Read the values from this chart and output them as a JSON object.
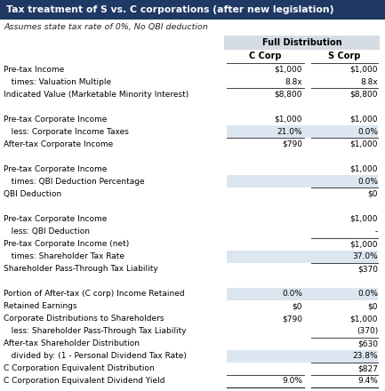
{
  "title": "Tax treatment of S vs. C corporations (after new legislation)",
  "subtitle": "Assumes state tax rate of 0%, No QBI deduction",
  "header_group": "Full Distribution",
  "col1_header": "C Corp",
  "col2_header": "S Corp",
  "rows": [
    {
      "label": "Pre-tax Income",
      "c": "$1,000",
      "s": "$1,000",
      "shade": false,
      "top_border": false,
      "bottom_border": false,
      "c_top": false,
      "s_top": false
    },
    {
      "label": "   times: Valuation Multiple",
      "c": "8.8x",
      "s": "8.8x",
      "shade": false,
      "top_border": false,
      "bottom_border": false,
      "c_top": false,
      "s_top": false
    },
    {
      "label": "Indicated Value (Marketable Minority Interest)",
      "c": "$8,800",
      "s": "$8,800",
      "shade": false,
      "top_border": false,
      "bottom_border": false,
      "c_top": true,
      "s_top": true
    },
    {
      "label": "",
      "c": "",
      "s": "",
      "shade": false,
      "top_border": false,
      "bottom_border": false,
      "c_top": false,
      "s_top": false
    },
    {
      "label": "Pre-tax Corporate Income",
      "c": "$1,000",
      "s": "$1,000",
      "shade": false,
      "top_border": false,
      "bottom_border": false,
      "c_top": false,
      "s_top": false
    },
    {
      "label": "   less: Corporate Income Taxes",
      "c": "21.0%",
      "s": "0.0%",
      "shade": true,
      "top_border": false,
      "bottom_border": false,
      "c_top": false,
      "s_top": false
    },
    {
      "label": "After-tax Corporate Income",
      "c": "$790",
      "s": "$1,000",
      "shade": false,
      "top_border": false,
      "bottom_border": false,
      "c_top": true,
      "s_top": true
    },
    {
      "label": "",
      "c": "",
      "s": "",
      "shade": false,
      "top_border": false,
      "bottom_border": false,
      "c_top": false,
      "s_top": false
    },
    {
      "label": "Pre-tax Corporate Income",
      "c": "",
      "s": "$1,000",
      "shade": false,
      "top_border": false,
      "bottom_border": false,
      "c_top": false,
      "s_top": false
    },
    {
      "label": "   times: QBI Deduction Percentage",
      "c": "",
      "s": "0.0%",
      "shade": true,
      "top_border": false,
      "bottom_border": false,
      "c_top": false,
      "s_top": false
    },
    {
      "label": "QBI Deduction",
      "c": "",
      "s": "$0",
      "shade": false,
      "top_border": false,
      "bottom_border": false,
      "c_top": false,
      "s_top": true
    },
    {
      "label": "",
      "c": "",
      "s": "",
      "shade": false,
      "top_border": false,
      "bottom_border": false,
      "c_top": false,
      "s_top": false
    },
    {
      "label": "Pre-tax Corporate Income",
      "c": "",
      "s": "$1,000",
      "shade": false,
      "top_border": false,
      "bottom_border": false,
      "c_top": false,
      "s_top": false
    },
    {
      "label": "   less: QBI Deduction",
      "c": "",
      "s": "-",
      "shade": false,
      "top_border": false,
      "bottom_border": false,
      "c_top": false,
      "s_top": false
    },
    {
      "label": "Pre-tax Corporate Income (net)",
      "c": "",
      "s": "$1,000",
      "shade": false,
      "top_border": false,
      "bottom_border": false,
      "c_top": false,
      "s_top": true
    },
    {
      "label": "   times: Shareholder Tax Rate",
      "c": "",
      "s": "37.0%",
      "shade": true,
      "top_border": false,
      "bottom_border": false,
      "c_top": false,
      "s_top": false
    },
    {
      "label": "Shareholder Pass-Through Tax Liability",
      "c": "",
      "s": "$370",
      "shade": false,
      "top_border": false,
      "bottom_border": false,
      "c_top": false,
      "s_top": true
    },
    {
      "label": "",
      "c": "",
      "s": "",
      "shade": false,
      "top_border": false,
      "bottom_border": false,
      "c_top": false,
      "s_top": false
    },
    {
      "label": "Portion of After-tax (C corp) Income Retained",
      "c": "0.0%",
      "s": "0.0%",
      "shade": true,
      "top_border": false,
      "bottom_border": false,
      "c_top": false,
      "s_top": false
    },
    {
      "label": "Retained Earnings",
      "c": "$0",
      "s": "$0",
      "shade": false,
      "top_border": false,
      "bottom_border": false,
      "c_top": false,
      "s_top": false
    },
    {
      "label": "Corporate Distributions to Shareholders",
      "c": "$790",
      "s": "$1,000",
      "shade": false,
      "top_border": false,
      "bottom_border": false,
      "c_top": false,
      "s_top": false
    },
    {
      "label": "   less: Shareholder Pass-Through Tax Liability",
      "c": "",
      "s": "(370)",
      "shade": false,
      "top_border": false,
      "bottom_border": false,
      "c_top": false,
      "s_top": false
    },
    {
      "label": "After-tax Shareholder Distribution",
      "c": "",
      "s": "$630",
      "shade": false,
      "top_border": false,
      "bottom_border": false,
      "c_top": false,
      "s_top": true
    },
    {
      "label": "   divided by: (1 - Personal Dividend Tax Rate)",
      "c": "",
      "s": "23.8%",
      "shade": true,
      "top_border": false,
      "bottom_border": false,
      "c_top": false,
      "s_top": false
    },
    {
      "label": "C Corporation Equivalent Distribution",
      "c": "",
      "s": "$827",
      "shade": false,
      "top_border": false,
      "bottom_border": false,
      "c_top": false,
      "s_top": true
    },
    {
      "label": "C Corporation Equivalent Dividend Yield",
      "c": "9.0%",
      "s": "9.4%",
      "shade": false,
      "top_border": false,
      "bottom_border": true,
      "c_top": true,
      "s_top": true
    }
  ],
  "header_bg": "#1f3864",
  "header_fg": "#ffffff",
  "subheader_bg": "#d6dce4",
  "shade_color": "#dce6f1",
  "line_color": "#404040",
  "bg_color": "#ffffff",
  "font_size": 6.5,
  "title_font_size": 7.8,
  "subtitle_font_size": 6.8
}
